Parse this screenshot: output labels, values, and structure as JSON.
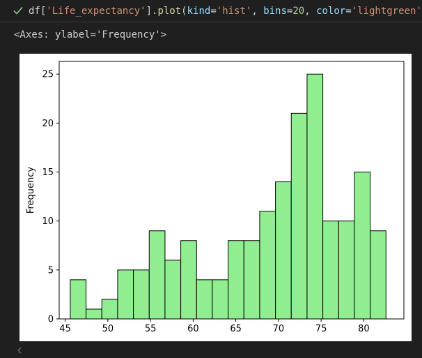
{
  "cell": {
    "status_icon": "check-icon",
    "status_color": "#89d185",
    "code_tokens": [
      {
        "t": "df[",
        "c": "p"
      },
      {
        "t": "'Life_expectancy'",
        "c": "str"
      },
      {
        "t": "].",
        "c": "p"
      },
      {
        "t": "plot",
        "c": "fn"
      },
      {
        "t": "(",
        "c": "p"
      },
      {
        "t": "kind",
        "c": "kw"
      },
      {
        "t": "=",
        "c": "p"
      },
      {
        "t": "'hist'",
        "c": "str"
      },
      {
        "t": ", ",
        "c": "p"
      },
      {
        "t": "bins",
        "c": "kw"
      },
      {
        "t": "=",
        "c": "p"
      },
      {
        "t": "20",
        "c": "num"
      },
      {
        "t": ", ",
        "c": "p"
      },
      {
        "t": "color",
        "c": "kw"
      },
      {
        "t": "=",
        "c": "p"
      },
      {
        "t": "'lightgreen'",
        "c": "str"
      },
      {
        "t": ", ",
        "c": "p"
      }
    ]
  },
  "output": {
    "repr_text": "<Axes: ylabel='Frequency'>"
  },
  "chart_data": {
    "type": "bar",
    "subtype": "histogram",
    "title": "",
    "xlabel": "",
    "ylabel": "Frequency",
    "bin_start": 45.6,
    "bin_width": 1.85,
    "values": [
      4,
      1,
      2,
      5,
      5,
      9,
      6,
      8,
      4,
      4,
      8,
      8,
      11,
      14,
      21,
      25,
      10,
      10,
      15,
      9
    ],
    "xlim": [
      44.3,
      84.7
    ],
    "ylim": [
      0,
      26.3
    ],
    "xticks": [
      45,
      50,
      55,
      60,
      65,
      70,
      75,
      80
    ],
    "yticks": [
      0,
      5,
      10,
      15,
      20,
      25
    ],
    "bar_color": "#90ee90",
    "edge_color": "#000000",
    "grid": false,
    "legend": "none"
  }
}
